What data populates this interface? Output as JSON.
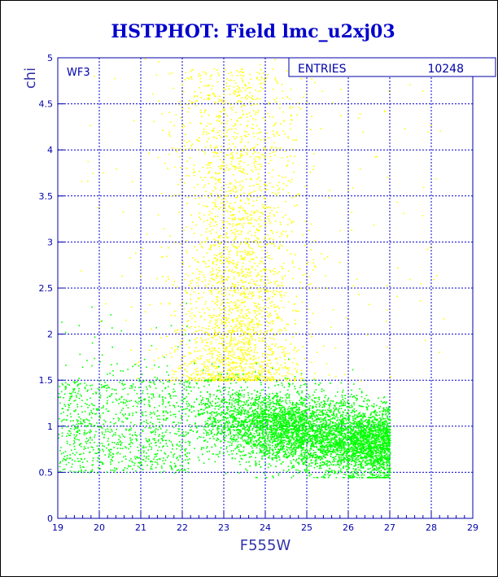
{
  "chart_data": {
    "type": "scatter",
    "title": "HSTPHOT: Field lmc_u2xj03",
    "xlabel": "F555W",
    "ylabel": "chi",
    "xlim": [
      19,
      29
    ],
    "ylim": [
      0,
      5
    ],
    "x_ticks": [
      "19",
      "20",
      "21",
      "22",
      "23",
      "24",
      "25",
      "26",
      "27",
      "28",
      "29"
    ],
    "y_ticks": [
      "0",
      "0.5",
      "1",
      "1.5",
      "2",
      "2.5",
      "3",
      "3.5",
      "4",
      "4.5",
      "5"
    ],
    "grid": true,
    "panel_label": "WF3",
    "stats_box": {
      "label": "ENTRIES",
      "value": "10248"
    },
    "series": [
      {
        "color": "#ffff00",
        "description": "yellow points",
        "points_summary": "stars with chi mostly 1.5–5, concentrated at F555W 22–24.5",
        "sample": [
          [
            22.2,
            4.8
          ],
          [
            22.6,
            4.6
          ],
          [
            22.4,
            4.1
          ],
          [
            22.9,
            3.9
          ],
          [
            23.1,
            3.6
          ],
          [
            22.5,
            3.4
          ],
          [
            23.3,
            3.2
          ],
          [
            23.6,
            2.9
          ],
          [
            22.8,
            2.8
          ],
          [
            23.9,
            2.6
          ],
          [
            24.2,
            2.3
          ],
          [
            22.3,
            2.2
          ],
          [
            23.4,
            2.0
          ],
          [
            24.6,
            1.9
          ],
          [
            25.1,
            1.7
          ],
          [
            22.1,
            1.6
          ],
          [
            26.3,
            1.5
          ],
          [
            20.4,
            3.8
          ],
          [
            21.5,
            4.4
          ],
          [
            27.8,
            3.6
          ]
        ]
      },
      {
        "color": "#00ff00",
        "description": "green points",
        "points_summary": "stars with chi mostly 0.5–1.5, densest at F555W 22–26",
        "sample": [
          [
            19.2,
            0.9
          ],
          [
            19.8,
            1.1
          ],
          [
            20.5,
            0.8
          ],
          [
            21.3,
            1.0
          ],
          [
            22.1,
            1.2
          ],
          [
            22.6,
            1.0
          ],
          [
            23.0,
            1.1
          ],
          [
            23.5,
            0.9
          ],
          [
            24.0,
            1.0
          ],
          [
            24.5,
            0.95
          ],
          [
            25.0,
            0.85
          ],
          [
            25.6,
            0.8
          ],
          [
            26.2,
            0.75
          ],
          [
            26.9,
            0.8
          ],
          [
            23.2,
            1.4
          ],
          [
            22.8,
            0.7
          ],
          [
            24.8,
            0.6
          ],
          [
            21.8,
            0.5
          ],
          [
            19.5,
            2.1
          ],
          [
            20.0,
            1.5
          ]
        ]
      }
    ]
  }
}
